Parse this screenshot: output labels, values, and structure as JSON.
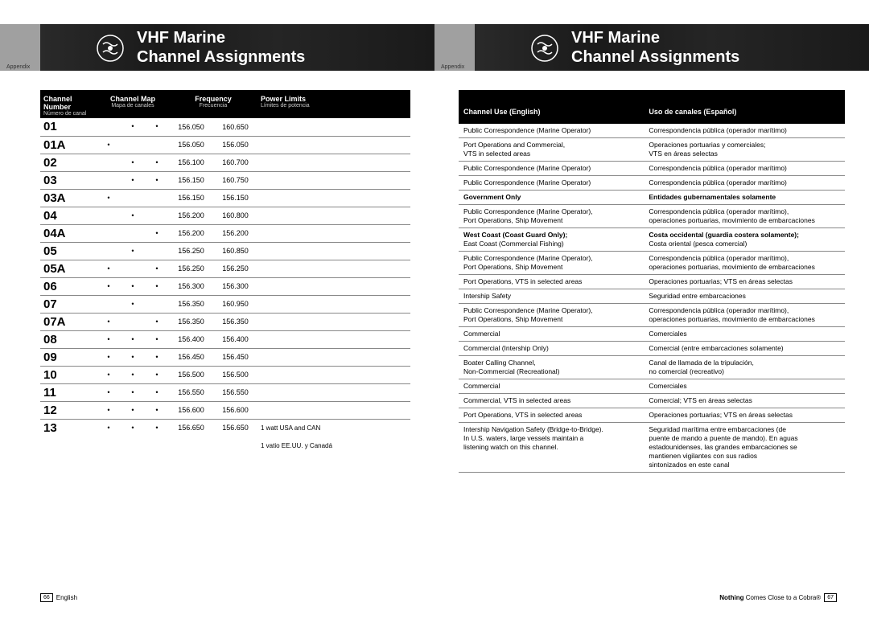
{
  "banner": {
    "title_line1": "VHF Marine",
    "title_line2": "Channel Assignments",
    "appendix_label": "Appendix"
  },
  "left_page": {
    "headers": {
      "ch_num": "Channel Number",
      "ch_num_sub": "Número de canal",
      "ch_map": "Channel Map",
      "ch_map_sub": "Mapa de canales",
      "freq": "Frequency",
      "freq_sub": "Frecuencia",
      "power": "Power Limits",
      "power_sub": "Límites de potencia"
    },
    "rows": [
      {
        "ch": "01",
        "d1": "",
        "d2": "•",
        "d3": "•",
        "f1": "156.050",
        "f2": "160.650",
        "pw": ""
      },
      {
        "ch": "01A",
        "d1": "•",
        "d2": "",
        "d3": "",
        "f1": "156.050",
        "f2": "156.050",
        "pw": ""
      },
      {
        "ch": "02",
        "d1": "",
        "d2": "•",
        "d3": "•",
        "f1": "156.100",
        "f2": "160.700",
        "pw": ""
      },
      {
        "ch": "03",
        "d1": "",
        "d2": "•",
        "d3": "•",
        "f1": "156.150",
        "f2": "160.750",
        "pw": ""
      },
      {
        "ch": "03A",
        "d1": "•",
        "d2": "",
        "d3": "",
        "f1": "156.150",
        "f2": "156.150",
        "pw": ""
      },
      {
        "ch": "04",
        "d1": "",
        "d2": "•",
        "d3": "",
        "f1": "156.200",
        "f2": "160.800",
        "pw": ""
      },
      {
        "ch": "04A",
        "d1": "",
        "d2": "",
        "d3": "•",
        "f1": "156.200",
        "f2": "156.200",
        "pw": ""
      },
      {
        "ch": "05",
        "d1": "",
        "d2": "•",
        "d3": "",
        "f1": "156.250",
        "f2": "160.850",
        "pw": ""
      },
      {
        "ch": "05A",
        "d1": "•",
        "d2": "",
        "d3": "•",
        "f1": "156.250",
        "f2": "156.250",
        "pw": ""
      },
      {
        "ch": "06",
        "d1": "•",
        "d2": "•",
        "d3": "•",
        "f1": "156.300",
        "f2": "156.300",
        "pw": ""
      },
      {
        "ch": "07",
        "d1": "",
        "d2": "•",
        "d3": "",
        "f1": "156.350",
        "f2": "160.950",
        "pw": ""
      },
      {
        "ch": "07A",
        "d1": "•",
        "d2": "",
        "d3": "•",
        "f1": "156.350",
        "f2": "156.350",
        "pw": ""
      },
      {
        "ch": "08",
        "d1": "•",
        "d2": "•",
        "d3": "•",
        "f1": "156.400",
        "f2": "156.400",
        "pw": ""
      },
      {
        "ch": "09",
        "d1": "•",
        "d2": "•",
        "d3": "•",
        "f1": "156.450",
        "f2": "156.450",
        "pw": ""
      },
      {
        "ch": "10",
        "d1": "•",
        "d2": "•",
        "d3": "•",
        "f1": "156.500",
        "f2": "156.500",
        "pw": ""
      },
      {
        "ch": "11",
        "d1": "•",
        "d2": "•",
        "d3": "•",
        "f1": "156.550",
        "f2": "156.550",
        "pw": ""
      },
      {
        "ch": "12",
        "d1": "•",
        "d2": "•",
        "d3": "•",
        "f1": "156.600",
        "f2": "156.600",
        "pw": ""
      },
      {
        "ch": "13",
        "d1": "•",
        "d2": "•",
        "d3": "•",
        "f1": "156.650",
        "f2": "156.650",
        "pw": "1 watt USA and CAN"
      }
    ],
    "power_sub_line": "1 vatio EE.UU. y Canadá",
    "footer_page": "66",
    "footer_lang": "English"
  },
  "right_page": {
    "headers": {
      "en": "Channel Use (English)",
      "es": "Uso de canales (Español)"
    },
    "rows": [
      {
        "en": "Public Correspondence (Marine Operator)",
        "es": "Correspondencia pública (operador marítimo)",
        "bold": false
      },
      {
        "en": "Port Operations and Commercial,\nVTS in selected areas",
        "es": "Operaciones portuarias y comerciales;\nVTS en áreas selectas",
        "bold": false
      },
      {
        "en": "Public Correspondence (Marine Operator)",
        "es": "Correspondencia pública (operador marítimo)",
        "bold": false
      },
      {
        "en": "Public Correspondence (Marine Operator)",
        "es": "Correspondencia pública (operador marítimo)",
        "bold": false
      },
      {
        "en": "Government Only",
        "es": "Entidades gubernamentales solamente",
        "bold": true
      },
      {
        "en": "Public Correspondence (Marine Operator),\nPort Operations, Ship Movement",
        "es": "Correspondencia pública (operador marítimo),\noperaciones portuarias, movimiento de embarcaciones",
        "bold": false
      },
      {
        "en": "West Coast (Coast Guard Only);\nEast Coast (Commercial Fishing)",
        "es": "Costa occidental (guardia costera solamente);\nCosta oriental (pesca comercial)",
        "bold": false,
        "first_bold": true
      },
      {
        "en": "Public Correspondence (Marine Operator),\nPort Operations, Ship Movement",
        "es": "Correspondencia pública (operador marítimo),\noperaciones portuarias, movimiento de embarcaciones",
        "bold": false
      },
      {
        "en": "Port Operations, VTS in selected areas",
        "es": "Operaciones portuarias; VTS en áreas selectas",
        "bold": false
      },
      {
        "en": "Intership Safety",
        "es": "Seguridad entre embarcaciones",
        "bold": false
      },
      {
        "en": "Public Correspondence (Marine Operator),\nPort Operations, Ship Movement",
        "es": "Correspondencia pública (operador marítimo),\noperaciones portuarias, movimiento de embarcaciones",
        "bold": false
      },
      {
        "en": "Commercial",
        "es": "Comerciales",
        "bold": false
      },
      {
        "en": "Commercial (Intership Only)",
        "es": "Comercial (entre embarcaciones solamente)",
        "bold": false
      },
      {
        "en": "Boater Calling Channel,\nNon-Commercial (Recreational)",
        "es": "Canal de llamada de la tripulación,\nno comercial (recreativo)",
        "bold": false
      },
      {
        "en": "Commercial",
        "es": "Comerciales",
        "bold": false
      },
      {
        "en": "Commercial, VTS in selected areas",
        "es": "Comercial; VTS en áreas selectas",
        "bold": false
      },
      {
        "en": "Port Operations, VTS in selected areas",
        "es": "Operaciones portuarias; VTS en áreas selectas",
        "bold": false
      },
      {
        "en": "Intership Navigation Safety (Bridge-to-Bridge).\nIn U.S. waters, large vessels maintain a\nlistening watch on this channel.",
        "es": "Seguridad marítima entre embarcaciones (de\npuente de mando a puente de mando). En aguas\nestadounidenses, las grandes embarcaciones se\nmantienen vigilantes con sus radios\nsintonizados en este canal",
        "bold": false
      }
    ],
    "footer_page": "67",
    "footer_tagline_bold": "Nothing",
    "footer_tagline_rest": " Comes Close to a Cobra®"
  },
  "colors": {
    "banner_grey": "#a0a0a0",
    "banner_dark": "#1a1a1a",
    "header_black": "#000000",
    "text": "#000000",
    "border": "#888888"
  }
}
